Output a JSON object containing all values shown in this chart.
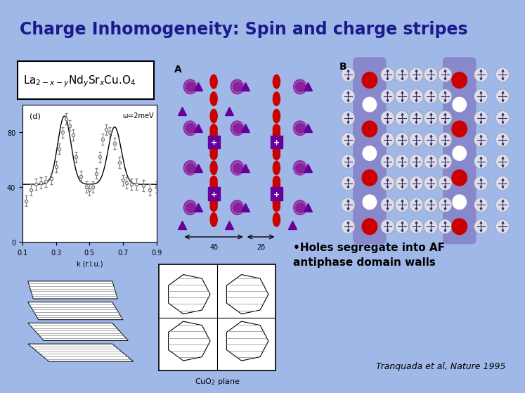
{
  "title": "Charge Inhomogeneity: Spin and charge stripes",
  "title_bg": "#7b96d2",
  "title_color": "#1a1a8c",
  "slide_bg": "#a0b8e8",
  "label_box_text": "La$_{2-x-y}$Nd$_y$Sr$_x$Cu.O$_4$",
  "bullet_text": "•Holes segregate into AF\nantiphase domain walls",
  "credit_text": "Tranquada et al, Nature 1995",
  "plot_label": "(d)",
  "plot_omega": "ω=2meV",
  "plot_xlabel": "k (r.l.u.)",
  "plot_yticks": [
    0,
    40,
    80
  ],
  "plot_xlim": [
    0.1,
    0.9
  ],
  "plot_ylim": [
    0,
    100
  ],
  "plot_xticks": [
    0.1,
    0.3,
    0.5,
    0.7,
    0.9
  ],
  "red_color": "#cc0000",
  "purple_color": "#882299",
  "dark_purple": "#660099",
  "purple_stripe_bg": "#8888cc",
  "spin_circle_color": "#ddddee",
  "spin_cross_color": "#333366"
}
